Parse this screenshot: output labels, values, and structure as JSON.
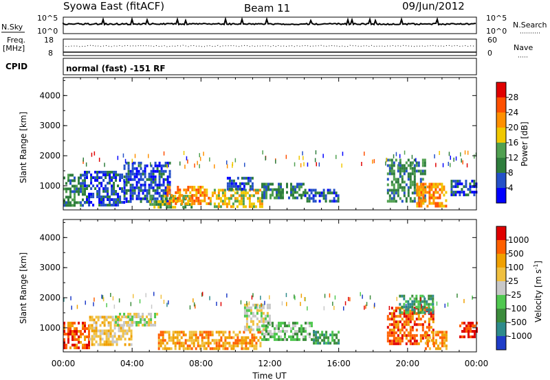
{
  "header": {
    "title": "Syowa East (fitACF)",
    "beam": "Beam 11",
    "date": "09/Jun/2012"
  },
  "top_panels": {
    "nsky_label": "N.Sky",
    "nsky_ticks": [
      "10^5",
      "10^0"
    ],
    "nsearch_label": "N.Search",
    "nsearch_ticks": [
      "10^5",
      "10^0"
    ],
    "freq_label_1": "Freq.",
    "freq_label_2": "[MHz]",
    "freq_ticks": [
      "18",
      "8"
    ],
    "nave_label": "Nave",
    "nave_ticks": [
      "60",
      "0"
    ],
    "cpid_label": "CPID",
    "cpid_text": "normal (fast) -151 RF"
  },
  "chart_data": [
    {
      "type": "heatmap",
      "name": "power",
      "ylabel": "Slant Range [km]",
      "yticks": [
        "1000",
        "2000",
        "3000",
        "4000"
      ],
      "ylim": [
        200,
        4600
      ],
      "xlim": [
        0,
        24
      ],
      "colorbar_label": "Power [dB]",
      "colorbar_ticks": [
        "4",
        "8",
        "12",
        "16",
        "20",
        "24",
        "28"
      ],
      "colors": [
        "#0000ff",
        "#2450c8",
        "#2e7d3c",
        "#50a050",
        "#f0c800",
        "#ff9000",
        "#ff5000",
        "#e00000"
      ],
      "regions": [
        {
          "t0": 0.0,
          "t1": 1.2,
          "r0": 350,
          "r1": 1400,
          "level": 2
        },
        {
          "t0": 1.2,
          "t1": 3.5,
          "r0": 400,
          "r1": 1500,
          "level": 1
        },
        {
          "t0": 3.5,
          "t1": 6.2,
          "r0": 500,
          "r1": 1800,
          "level": 1
        },
        {
          "t0": 5.0,
          "t1": 7.5,
          "r0": 250,
          "r1": 700,
          "level": 3
        },
        {
          "t0": 6.0,
          "t1": 8.5,
          "r0": 450,
          "r1": 1000,
          "level": 5
        },
        {
          "t0": 8.5,
          "t1": 11.5,
          "r0": 300,
          "r1": 900,
          "level": 4
        },
        {
          "t0": 9.5,
          "t1": 11.0,
          "r0": 900,
          "r1": 1300,
          "level": 1
        },
        {
          "t0": 11.5,
          "t1": 14.0,
          "r0": 600,
          "r1": 1100,
          "level": 2
        },
        {
          "t0": 14.0,
          "t1": 16.0,
          "r0": 500,
          "r1": 900,
          "level": 1
        },
        {
          "t0": 18.8,
          "t1": 21.0,
          "r0": 500,
          "r1": 1900,
          "level": 2
        },
        {
          "t0": 20.5,
          "t1": 22.2,
          "r0": 300,
          "r1": 1100,
          "level": 5
        },
        {
          "t0": 22.5,
          "t1": 24.0,
          "r0": 700,
          "r1": 1200,
          "level": 1
        }
      ]
    },
    {
      "type": "heatmap",
      "name": "velocity",
      "ylabel": "Slant Range [km]",
      "yticks": [
        "1000",
        "2000",
        "3000",
        "4000"
      ],
      "ylim": [
        200,
        4600
      ],
      "xlim": [
        0,
        24
      ],
      "xlabel": "Time UT",
      "xticks": [
        "00:00",
        "04:00",
        "08:00",
        "12:00",
        "16:00",
        "20:00",
        "00:00"
      ],
      "colorbar_label": "Velocity [m s",
      "colorbar_label_sup": "-1",
      "colorbar_label_end": "]",
      "colorbar_ticks": [
        "1000",
        "500",
        "100",
        "25",
        "-25",
        "-100",
        "-500",
        "-1000"
      ],
      "colors": [
        "#1e3cc8",
        "#2e8b8b",
        "#3c8c3c",
        "#50c850",
        "#c8c8c8",
        "#f0c040",
        "#f0a000",
        "#ff6000",
        "#e00000"
      ],
      "regions": [
        {
          "t0": 0.0,
          "t1": 1.5,
          "r0": 350,
          "r1": 1200,
          "level": 7
        },
        {
          "t0": 1.5,
          "t1": 4.0,
          "r0": 400,
          "r1": 1400,
          "level": 5
        },
        {
          "t0": 3.0,
          "t1": 5.5,
          "r0": 1100,
          "r1": 1500,
          "level": 4
        },
        {
          "t0": 5.5,
          "t1": 9.0,
          "r0": 300,
          "r1": 900,
          "level": 6
        },
        {
          "t0": 9.0,
          "t1": 11.5,
          "r0": 300,
          "r1": 900,
          "level": 6
        },
        {
          "t0": 10.5,
          "t1": 12.0,
          "r0": 900,
          "r1": 1800,
          "level": 4
        },
        {
          "t0": 11.5,
          "t1": 14.5,
          "r0": 600,
          "r1": 1200,
          "level": 3
        },
        {
          "t0": 14.5,
          "t1": 16.0,
          "r0": 500,
          "r1": 900,
          "level": 2
        },
        {
          "t0": 18.8,
          "t1": 21.5,
          "r0": 500,
          "r1": 1700,
          "level": 7
        },
        {
          "t0": 19.5,
          "t1": 21.5,
          "r0": 1500,
          "r1": 2100,
          "level": 2
        },
        {
          "t0": 21.0,
          "t1": 22.2,
          "r0": 300,
          "r1": 900,
          "level": 6
        },
        {
          "t0": 23.0,
          "t1": 24.0,
          "r0": 700,
          "r1": 1200,
          "level": 8
        }
      ]
    }
  ]
}
